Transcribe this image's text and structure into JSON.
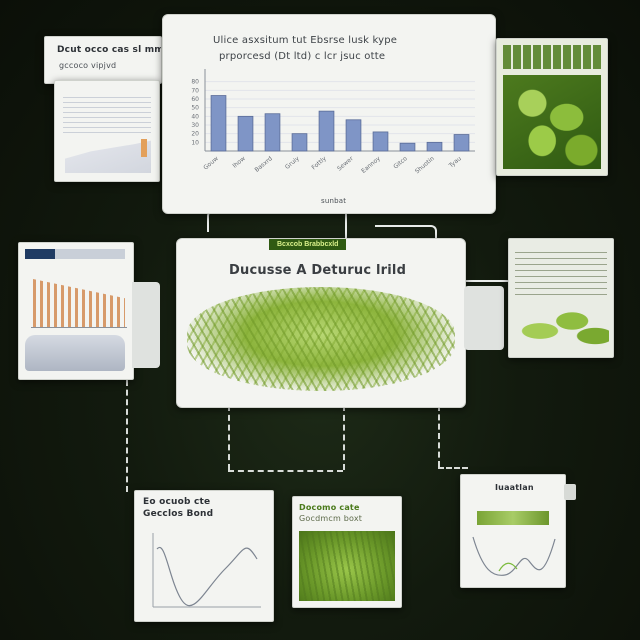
{
  "top_left_label": {
    "line1": "Dcut occo cas sl mm",
    "line2": "gccoco  vipjvd"
  },
  "main_chart_card": {
    "title_line1": "Ulice asxsitum tut Ebsrse lusk kype",
    "title_line2": "prporcesd (Dt ltd) c lcr jsuc otte",
    "footer": "sunbat",
    "chart_data": {
      "type": "bar",
      "categories": [
        "Gouw",
        "Ihow",
        "Basxrd",
        "Gruiy",
        "Fottly",
        "Sewer",
        "Eannoy",
        "Gitco",
        "Shuotin",
        "Tyau"
      ],
      "values": [
        64,
        40,
        43,
        20,
        46,
        36,
        22,
        9,
        10,
        19
      ],
      "ylim": [
        0,
        90
      ],
      "y_ticks": [
        "80",
        "70",
        "60",
        "50",
        "40",
        "30",
        "20",
        "10"
      ]
    }
  },
  "center_card": {
    "badge": "Bcxcob Brabbcxld",
    "title": "Ducusse A Deturuc lrild"
  },
  "bottom_left_card": {
    "title_line1": "Eo ocuob cte",
    "title_line2": "Gecclos Bond"
  },
  "bottom_middle_card": {
    "title_line1": "Docomo cate",
    "title_line2": "Gocdmcm boxt"
  },
  "bottom_right_card": {
    "title": "Iuaatlan"
  },
  "colors": {
    "background": "#0f150c",
    "card": "#f3f4f1",
    "bar_fill": "#7f95c6",
    "accent_green": "#5f8f22",
    "badge_bg": "#2f5a12",
    "badge_text": "#d9f08a"
  }
}
